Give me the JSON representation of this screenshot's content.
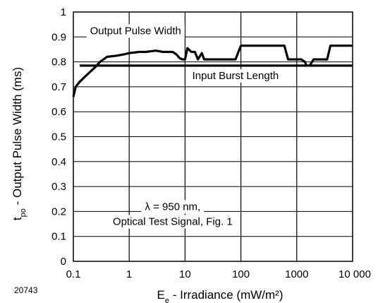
{
  "chart_data": {
    "type": "line",
    "x_scale": "log",
    "xlim": [
      0.1,
      10000
    ],
    "ylim": [
      0,
      1
    ],
    "grid": true,
    "x_ticks": [
      {
        "value": 0.1,
        "label": "0.1"
      },
      {
        "value": 1,
        "label": "1"
      },
      {
        "value": 10,
        "label": "10"
      },
      {
        "value": 100,
        "label": "100"
      },
      {
        "value": 1000,
        "label": "1000"
      },
      {
        "value": 10000,
        "label": "10 000"
      }
    ],
    "y_ticks": [
      {
        "value": 0,
        "label": "0"
      },
      {
        "value": 0.1,
        "label": "0.1"
      },
      {
        "value": 0.2,
        "label": "0.2"
      },
      {
        "value": 0.3,
        "label": "0.3"
      },
      {
        "value": 0.4,
        "label": "0.4"
      },
      {
        "value": 0.5,
        "label": "0.5"
      },
      {
        "value": 0.6,
        "label": "0.6"
      },
      {
        "value": 0.7,
        "label": "0.7"
      },
      {
        "value": 0.8,
        "label": "0.8"
      },
      {
        "value": 0.9,
        "label": "0.9"
      },
      {
        "value": 1,
        "label": "1"
      }
    ],
    "xlabel": {
      "main": "E",
      "sub": "e",
      "rest": " - Irradiance (mW/m²)"
    },
    "ylabel": {
      "main": "t",
      "sub": "po",
      "rest": " - Output Pulse Width (ms)"
    },
    "figure_id": "20743",
    "series": [
      {
        "name": "Output Pulse Width",
        "x": [
          0.1,
          0.11,
          0.13,
          0.16,
          0.2,
          0.25,
          0.3,
          0.4,
          0.6,
          0.8,
          1.0,
          1.5,
          2,
          3,
          4,
          6,
          7,
          8,
          9,
          10,
          11,
          13,
          15,
          17,
          20,
          22,
          25,
          28,
          30,
          35,
          50,
          80,
          100,
          150,
          200,
          300,
          400,
          500,
          600,
          700,
          800,
          900,
          1000,
          1200,
          1400,
          1500,
          1700,
          2000,
          2500,
          3000,
          3500,
          4000,
          5000,
          7000,
          10000
        ],
        "y": [
          0.66,
          0.7,
          0.72,
          0.74,
          0.76,
          0.78,
          0.8,
          0.82,
          0.825,
          0.83,
          0.835,
          0.84,
          0.84,
          0.845,
          0.84,
          0.84,
          0.83,
          0.815,
          0.81,
          0.81,
          0.855,
          0.84,
          0.84,
          0.81,
          0.835,
          0.81,
          0.81,
          0.81,
          0.81,
          0.81,
          0.81,
          0.81,
          0.865,
          0.865,
          0.865,
          0.865,
          0.865,
          0.865,
          0.865,
          0.81,
          0.81,
          0.81,
          0.81,
          0.81,
          0.8,
          0.785,
          0.785,
          0.81,
          0.81,
          0.81,
          0.81,
          0.865,
          0.865,
          0.865,
          0.865
        ]
      },
      {
        "name": "Input Burst Length",
        "x": [
          0.13,
          10000
        ],
        "y": [
          0.785,
          0.785
        ]
      }
    ],
    "annotations": [
      {
        "id": "output-label",
        "text": "Output Pulse Width",
        "x": 1.3,
        "y": 0.925
      },
      {
        "id": "input-label",
        "text": "Input Burst Length",
        "x": 80,
        "y": 0.745
      },
      {
        "id": "cond-line1",
        "text": "λ = 950 nm,",
        "x": 6,
        "y": 0.22
      },
      {
        "id": "cond-line2",
        "text": "Optical Test Signal, Fig. 1",
        "x": 6,
        "y": 0.16
      }
    ]
  }
}
